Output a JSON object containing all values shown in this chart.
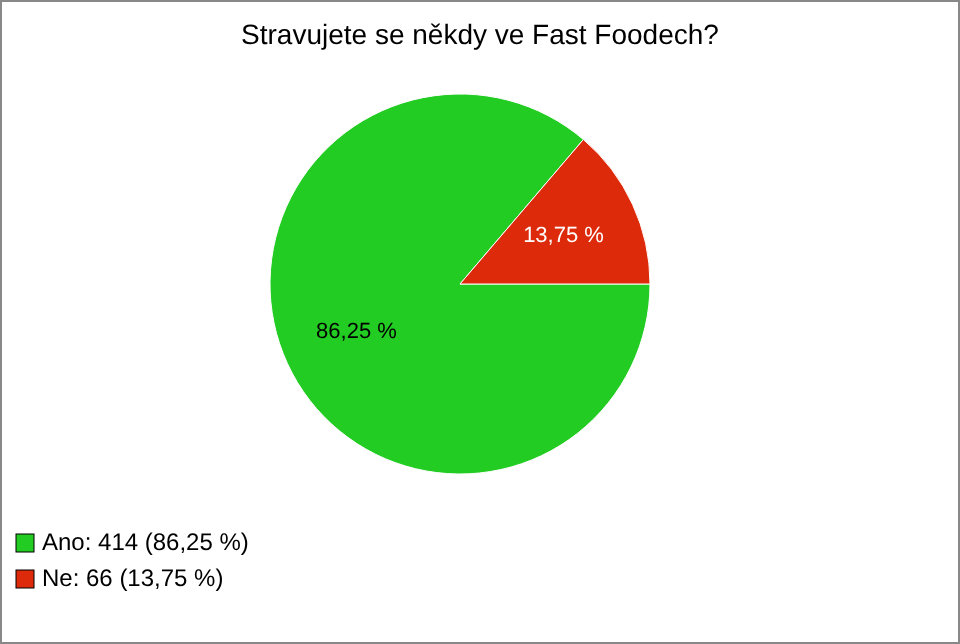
{
  "chart_data": {
    "type": "pie",
    "title": "Stravujete se někdy ve Fast Foodech?",
    "categories": [
      "Ano: 414 (86,25 %)",
      "Ne: 66 (13,75 %)"
    ],
    "values": [
      86.25,
      13.75
    ],
    "value_labels": [
      "86,25 %",
      "13,75 %"
    ],
    "colors": [
      "#22cc22",
      "#dd2a0a"
    ],
    "legend": "bottom left"
  }
}
